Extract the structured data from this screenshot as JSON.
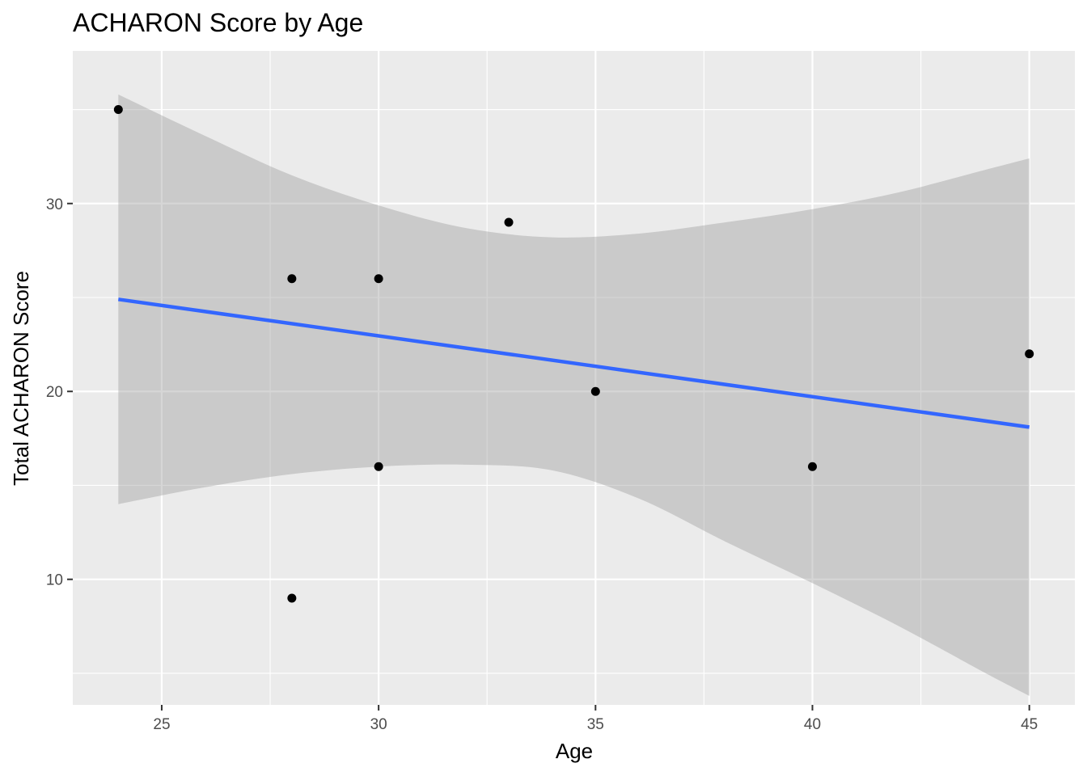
{
  "chart_data": {
    "type": "scatter",
    "title": "ACHARON Score by Age",
    "xlabel": "Age",
    "ylabel": "Total ACHARON Score",
    "xlim": [
      22.95,
      46.05
    ],
    "ylim": [
      3.32,
      38.12
    ],
    "x_ticks": [
      25,
      30,
      35,
      40,
      45
    ],
    "x_tick_labels": [
      "25",
      "30",
      "35",
      "40",
      "45"
    ],
    "y_ticks": [
      10,
      20,
      30
    ],
    "y_tick_labels": [
      "10",
      "20",
      "30"
    ],
    "grid": true,
    "legend": "none",
    "points": [
      {
        "x": 24,
        "y": 35
      },
      {
        "x": 28,
        "y": 26
      },
      {
        "x": 28,
        "y": 9
      },
      {
        "x": 30,
        "y": 26
      },
      {
        "x": 30,
        "y": 16
      },
      {
        "x": 33,
        "y": 29
      },
      {
        "x": 35,
        "y": 20
      },
      {
        "x": 40,
        "y": 16
      },
      {
        "x": 45,
        "y": 22
      }
    ],
    "trend": {
      "method": "linear",
      "x": [
        24,
        45
      ],
      "y": [
        24.9,
        18.1
      ]
    },
    "confidence_band": {
      "x": [
        24,
        26,
        28,
        30,
        32,
        34,
        36,
        38,
        40,
        42,
        44,
        45
      ],
      "upper": [
        35.8,
        33.6,
        31.5,
        29.9,
        28.7,
        28.2,
        28.4,
        29.0,
        29.7,
        30.6,
        31.8,
        32.4
      ],
      "lower": [
        14.0,
        14.9,
        15.6,
        16.0,
        16.1,
        15.8,
        14.3,
        12.0,
        9.8,
        7.5,
        5.0,
        3.8
      ]
    },
    "colors": {
      "panel": "#ebebeb",
      "grid_major": "#ffffff",
      "point": "#000000",
      "trend_line": "#3366ff",
      "band": "#999999"
    }
  }
}
